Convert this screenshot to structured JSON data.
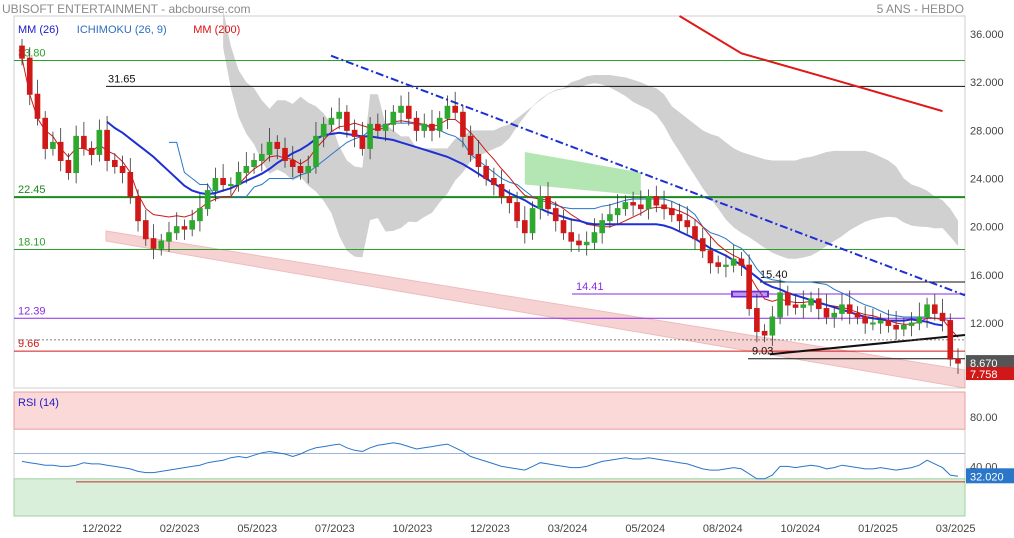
{
  "header": {
    "title": "UBISOFT ENTERTAINMENT - abcbourse.com",
    "period": "5 ANS - HEBDO"
  },
  "legend": [
    {
      "label": "MM (26)",
      "color": "#1a1acc"
    },
    {
      "label": "ICHIMOKU (26, 9)",
      "color": "#2f6fbf"
    },
    {
      "label": "MM (200)",
      "color": "#dd1111"
    }
  ],
  "colors": {
    "up": "#2ea82e",
    "down": "#d01818",
    "ma26": "#1e2fd6",
    "ma200": "#e01818",
    "tenkan": "#cc1a1a",
    "kijun": "#2a76c8",
    "cloud": "#c8c8c8",
    "cloud_green": "#b4e6b4",
    "downtrend": "#1e2fd6",
    "channel": "#f4c0c0",
    "rsi": "#2a76c8"
  },
  "chart_data": [
    {
      "type": "candlestick",
      "title": "",
      "x_ticks": [
        "12/2022",
        "02/2023",
        "05/2023",
        "07/2023",
        "10/2023",
        "12/2023",
        "03/2024",
        "05/2024",
        "08/2024",
        "10/2024",
        "01/2025",
        "03/2025"
      ],
      "ylim": [
        6.6,
        37.5
      ],
      "y_ticks": [
        "36.000",
        "32.000",
        "28.000",
        "24.000",
        "20.000",
        "16.000",
        "12.000"
      ],
      "levels": [
        {
          "label": "33.80",
          "value": 33.8,
          "color": "#2ca02c"
        },
        {
          "label": "31.65",
          "value": 31.65,
          "color": "#111111"
        },
        {
          "label": "22.45",
          "value": 22.45,
          "color": "#1a8a1a"
        },
        {
          "label": "18.10",
          "value": 18.1,
          "color": "#2ca02c"
        },
        {
          "label": "15.40",
          "value": 15.4,
          "color": "#111111"
        },
        {
          "label": "14.41",
          "value": 14.41,
          "color": "#8a2be2"
        },
        {
          "label": "12.39",
          "value": 12.39,
          "color": "#8a2be2"
        },
        {
          "label": "9.66",
          "value": 9.66,
          "color": "#d01818"
        },
        {
          "label": "9.03",
          "value": 9.03,
          "color": "#111111"
        }
      ],
      "last_price": {
        "label": "8.670",
        "value": 8.67
      },
      "low_price": {
        "label": "7.758",
        "value": 7.758
      },
      "close": [
        34,
        31,
        29,
        26.5,
        27,
        25.5,
        24.5,
        27.5,
        26.5,
        26,
        28,
        25.5,
        25,
        24.5,
        22.5,
        20.5,
        19,
        18.2,
        18.8,
        19.5,
        20,
        19.8,
        20.5,
        21.5,
        23,
        24,
        23.5,
        23.5,
        24.5,
        25,
        25.5,
        26,
        27,
        26.5,
        25.5,
        25,
        24.5,
        25,
        27.5,
        28.5,
        29,
        29.5,
        28,
        27.5,
        26.5,
        28.5,
        28,
        28.5,
        29.5,
        30,
        29,
        28,
        28.5,
        28,
        29,
        30,
        29.5,
        27.5,
        26,
        25,
        24,
        23.5,
        22.5,
        22,
        20.5,
        19.5,
        21.5,
        22.5,
        21.5,
        20.5,
        19.5,
        18.8,
        18.5,
        18.7,
        19.5,
        20.5,
        21,
        21.5,
        22,
        21.8,
        21.5,
        22.5,
        21.8,
        21.5,
        21,
        20.5,
        20,
        19,
        18,
        17,
        16.7,
        16.8,
        17.3,
        16.8,
        13.2,
        11.3,
        11,
        12.5,
        14.5,
        13.5,
        13.3,
        13.5,
        14,
        13.2,
        12.5,
        12.8,
        13.5,
        12.8,
        12.5,
        12,
        12,
        12.2,
        11.8,
        11.5,
        11.8,
        12,
        12.5,
        13.5,
        12.8,
        12.2,
        9,
        8.67
      ],
      "ma26": [
        null,
        null,
        null,
        null,
        null,
        null,
        null,
        null,
        null,
        null,
        null,
        28.7,
        28.2,
        27.8,
        27.3,
        26.8,
        26.3,
        25.8,
        25.2,
        24.6,
        24,
        23.4,
        23,
        22.8,
        22.7,
        22.8,
        23,
        23.2,
        23.5,
        23.8,
        24.1,
        24.4,
        24.8,
        25.3,
        25.7,
        26.1,
        26.4,
        26.8,
        27.3,
        27.6,
        27.7,
        27.8,
        27.7,
        27.6,
        27.5,
        27.5,
        27.4,
        27.3,
        27.2,
        27,
        26.8,
        26.6,
        26.4,
        26.2,
        26,
        25.8,
        25.5,
        25.2,
        24.8,
        24.4,
        24,
        23.6,
        23.2,
        22.8,
        22.5,
        22.2,
        21.8,
        21.5,
        21.2,
        21,
        20.8,
        20.6,
        20.5,
        20.3,
        20.2,
        20.2,
        20.2,
        20.2,
        20.2,
        20.2,
        20.2,
        20.2,
        20.2,
        20.1,
        19.9,
        19.6,
        19.3,
        19,
        18.6,
        18.2,
        17.9,
        17.6,
        17.2,
        16.8,
        16.3,
        15.8,
        15.3,
        15,
        14.8,
        14.5,
        14.3,
        14.1,
        13.9,
        13.7,
        13.5,
        13.3,
        13.1,
        12.9,
        12.7,
        12.5,
        12.4,
        12.3,
        12.2,
        12.2,
        12.2,
        12.3,
        12.2,
        12.1,
        11.9,
        11.8
      ],
      "tenkan": [
        34,
        31,
        29,
        28,
        27.5,
        26.5,
        25.8,
        26.5,
        26.5,
        26.2,
        26.8,
        26.3,
        26,
        25.4,
        24.5,
        22.7,
        21.5,
        21,
        20.9,
        20.8,
        20.9,
        20.8,
        21,
        21.5,
        22,
        22.3,
        22.5,
        22.5,
        23.5,
        24.2,
        24.8,
        25.2,
        25.8,
        25.9,
        25.7,
        25.6,
        25.2,
        25.6,
        26.5,
        27.2,
        27.9,
        28.3,
        28.4,
        28.6,
        28.4,
        28.2,
        28,
        28.3,
        28.7,
        28.8,
        28.7,
        28.6,
        28.5,
        28.3,
        28.5,
        28.9,
        28.9,
        28.4,
        27.8,
        27.1,
        26.3,
        25.6,
        24.8,
        24.1,
        23.3,
        22.6,
        22.4,
        22.3,
        22.2,
        21.9,
        21.5,
        21,
        20.6,
        20.2,
        20.1,
        20,
        20,
        20.2,
        20.5,
        20.8,
        21.1,
        21.5,
        21.6,
        21.6,
        21.5,
        21.3,
        21,
        20.6,
        20,
        19.2,
        18.5,
        18,
        17.6,
        17.3,
        16,
        14.9,
        14,
        13.8,
        14,
        13.8,
        13.7,
        13.7,
        13.8,
        13.6,
        13.5,
        13.4,
        13.3,
        13.1,
        12.9,
        12.7,
        12.6,
        12.4,
        12.2,
        12,
        11.9,
        11.9,
        12.1,
        12.4,
        12.4,
        12.3,
        11.5,
        10.8
      ],
      "kijun": [
        null,
        null,
        null,
        null,
        null,
        null,
        null,
        null,
        null,
        null,
        null,
        null,
        null,
        null,
        null,
        null,
        null,
        null,
        null,
        27,
        27,
        24.5,
        24,
        23.5,
        23.5,
        22.5,
        22.5,
        22.5,
        22.5,
        22.5,
        23.3,
        23.5,
        24,
        24,
        24,
        24,
        24.3,
        24.5,
        25,
        25.5,
        26,
        26.5,
        27,
        27.3,
        27.5,
        28,
        28.2,
        28.5,
        28.6,
        28.6,
        28.6,
        28.5,
        28.4,
        28.2,
        28,
        27.7,
        27.5,
        27,
        26,
        25.5,
        25,
        24.5,
        24,
        23.7,
        23.5,
        23,
        22.5,
        22.2,
        22,
        21.8,
        21.6,
        21.5,
        21.5,
        21.5,
        21.5,
        21.7,
        21.8,
        22,
        22.2,
        22.3,
        22.3,
        22.3,
        22.3,
        22.3,
        22.1,
        21.8,
        21.5,
        21,
        20,
        19.5,
        19.3,
        19,
        18.5,
        18.2,
        17.5,
        16.5,
        15.8,
        15.6,
        15.5,
        15.4,
        15.4,
        15.4,
        15.4,
        15.3,
        15.2,
        14.8,
        14.5,
        14.2,
        13.8,
        13.5,
        13.3,
        13,
        12.7,
        12.6,
        12.5,
        12.5,
        12.5,
        12.5,
        12.4,
        12.3,
        12.2
      ],
      "rsi": [
        44,
        43,
        42,
        41,
        41,
        40,
        40,
        41,
        43,
        42,
        42,
        41,
        40,
        39,
        38,
        36,
        35,
        35,
        36,
        37,
        38,
        39,
        40,
        41,
        43,
        44,
        45,
        47,
        48,
        47,
        49,
        51,
        52,
        51,
        50,
        48,
        50,
        53,
        55,
        56,
        57,
        58,
        55,
        53,
        52,
        55,
        57,
        58,
        59,
        58,
        56,
        54,
        55,
        56,
        57,
        58,
        55,
        52,
        48,
        46,
        44,
        42,
        40,
        39,
        38,
        37,
        40,
        43,
        42,
        41,
        40,
        39,
        39,
        40,
        42,
        44,
        45,
        46,
        47,
        46,
        46,
        47,
        46,
        45,
        44,
        43,
        42,
        40,
        38,
        37,
        37,
        38,
        39,
        38,
        34,
        30,
        30,
        33,
        40,
        40,
        39,
        40,
        41,
        40,
        38,
        39,
        41,
        40,
        39,
        38,
        38,
        39,
        38,
        37,
        38,
        39,
        41,
        45,
        42,
        39,
        33,
        32
      ],
      "rsi_panel": {
        "title": "RSI (14)",
        "value_label": "32.020",
        "value": 32.02,
        "ylim": [
          0,
          100
        ],
        "y_ticks": [
          "80.00",
          "40.00"
        ],
        "upper_zone": 70,
        "lower_zone": 30,
        "ref_high": 50.4,
        "ref_low": 27.5
      }
    }
  ]
}
